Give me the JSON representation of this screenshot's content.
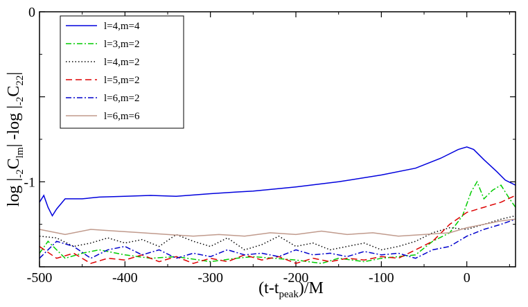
{
  "chart_data": {
    "type": "line",
    "title": "",
    "xlabel": {
      "main": "(t-t",
      "sub": "peak",
      "tail": ")/M"
    },
    "ylabel": {
      "p1": "log |",
      "s1": "-2",
      "p2": "C",
      "s2": "lm",
      "p3": "| -log |",
      "s3": "-2",
      "p4": "C",
      "s4": "22",
      "p5": "|"
    },
    "xlim": [
      -500,
      57
    ],
    "ylim": [
      -1.5,
      0
    ],
    "x_ticks": [
      -500,
      -400,
      -300,
      -200,
      -100,
      0
    ],
    "x_tick_labels": [
      "-500",
      "-400",
      "-300",
      "-200",
      "-100",
      "0"
    ],
    "y_ticks": [
      0,
      -0.5,
      -1,
      -1.5
    ],
    "y_tick_labels": [
      "0",
      "",
      "-1",
      ""
    ],
    "legend_position": "top-left",
    "series": [
      {
        "name": "l=4,m=4",
        "color": "#0000dd",
        "dash": "solid",
        "points": [
          [
            -500,
            -1.12
          ],
          [
            -495,
            -1.08
          ],
          [
            -490,
            -1.15
          ],
          [
            -485,
            -1.2
          ],
          [
            -480,
            -1.16
          ],
          [
            -470,
            -1.1
          ],
          [
            -450,
            -1.1
          ],
          [
            -430,
            -1.09
          ],
          [
            -400,
            -1.085
          ],
          [
            -370,
            -1.08
          ],
          [
            -340,
            -1.085
          ],
          [
            -300,
            -1.07
          ],
          [
            -270,
            -1.06
          ],
          [
            -250,
            -1.055
          ],
          [
            -200,
            -1.03
          ],
          [
            -150,
            -1.0
          ],
          [
            -100,
            -0.96
          ],
          [
            -60,
            -0.92
          ],
          [
            -30,
            -0.86
          ],
          [
            -10,
            -0.81
          ],
          [
            0,
            -0.795
          ],
          [
            8,
            -0.81
          ],
          [
            20,
            -0.87
          ],
          [
            35,
            -0.94
          ],
          [
            45,
            -0.99
          ],
          [
            57,
            -1.02
          ]
        ]
      },
      {
        "name": "l=3,m=2",
        "color": "#00cc00",
        "dash": "dashdot",
        "points": [
          [
            -500,
            -1.42
          ],
          [
            -490,
            -1.35
          ],
          [
            -470,
            -1.45
          ],
          [
            -450,
            -1.42
          ],
          [
            -430,
            -1.4
          ],
          [
            -400,
            -1.43
          ],
          [
            -370,
            -1.45
          ],
          [
            -340,
            -1.44
          ],
          [
            -300,
            -1.47
          ],
          [
            -270,
            -1.45
          ],
          [
            -250,
            -1.44
          ],
          [
            -200,
            -1.46
          ],
          [
            -170,
            -1.48
          ],
          [
            -150,
            -1.45
          ],
          [
            -120,
            -1.47
          ],
          [
            -100,
            -1.45
          ],
          [
            -80,
            -1.44
          ],
          [
            -60,
            -1.43
          ],
          [
            -40,
            -1.35
          ],
          [
            -20,
            -1.3
          ],
          [
            -5,
            -1.2
          ],
          [
            5,
            -1.06
          ],
          [
            12,
            -1.0
          ],
          [
            20,
            -1.1
          ],
          [
            30,
            -1.05
          ],
          [
            40,
            -1.02
          ],
          [
            50,
            -1.1
          ],
          [
            57,
            -1.15
          ]
        ]
      },
      {
        "name": "l=4,m=2",
        "color": "#000000",
        "dash": "dotted",
        "points": [
          [
            -500,
            -1.32
          ],
          [
            -480,
            -1.33
          ],
          [
            -460,
            -1.38
          ],
          [
            -440,
            -1.36
          ],
          [
            -420,
            -1.33
          ],
          [
            -400,
            -1.36
          ],
          [
            -380,
            -1.34
          ],
          [
            -360,
            -1.38
          ],
          [
            -340,
            -1.31
          ],
          [
            -320,
            -1.35
          ],
          [
            -300,
            -1.38
          ],
          [
            -280,
            -1.33
          ],
          [
            -260,
            -1.4
          ],
          [
            -240,
            -1.37
          ],
          [
            -220,
            -1.32
          ],
          [
            -200,
            -1.38
          ],
          [
            -180,
            -1.36
          ],
          [
            -160,
            -1.4
          ],
          [
            -140,
            -1.38
          ],
          [
            -120,
            -1.36
          ],
          [
            -100,
            -1.4
          ],
          [
            -80,
            -1.38
          ],
          [
            -60,
            -1.35
          ],
          [
            -40,
            -1.3
          ],
          [
            -20,
            -1.27
          ],
          [
            0,
            -1.28
          ],
          [
            20,
            -1.25
          ],
          [
            40,
            -1.22
          ],
          [
            57,
            -1.2
          ]
        ]
      },
      {
        "name": "l=5,m=2",
        "color": "#dd0000",
        "dash": "dashed",
        "points": [
          [
            -500,
            -1.38
          ],
          [
            -480,
            -1.45
          ],
          [
            -460,
            -1.42
          ],
          [
            -440,
            -1.48
          ],
          [
            -420,
            -1.45
          ],
          [
            -400,
            -1.46
          ],
          [
            -380,
            -1.43
          ],
          [
            -360,
            -1.47
          ],
          [
            -340,
            -1.44
          ],
          [
            -320,
            -1.48
          ],
          [
            -300,
            -1.45
          ],
          [
            -280,
            -1.47
          ],
          [
            -260,
            -1.43
          ],
          [
            -240,
            -1.46
          ],
          [
            -220,
            -1.44
          ],
          [
            -200,
            -1.48
          ],
          [
            -180,
            -1.45
          ],
          [
            -160,
            -1.47
          ],
          [
            -140,
            -1.45
          ],
          [
            -120,
            -1.46
          ],
          [
            -100,
            -1.44
          ],
          [
            -80,
            -1.45
          ],
          [
            -60,
            -1.4
          ],
          [
            -40,
            -1.35
          ],
          [
            -20,
            -1.25
          ],
          [
            0,
            -1.18
          ],
          [
            20,
            -1.15
          ],
          [
            40,
            -1.12
          ],
          [
            57,
            -1.08
          ]
        ]
      },
      {
        "name": "l=6,m=2",
        "color": "#0000cc",
        "dash": "dashdot",
        "points": [
          [
            -500,
            -1.45
          ],
          [
            -480,
            -1.35
          ],
          [
            -460,
            -1.38
          ],
          [
            -440,
            -1.45
          ],
          [
            -420,
            -1.4
          ],
          [
            -400,
            -1.38
          ],
          [
            -380,
            -1.43
          ],
          [
            -360,
            -1.4
          ],
          [
            -340,
            -1.45
          ],
          [
            -320,
            -1.42
          ],
          [
            -300,
            -1.44
          ],
          [
            -280,
            -1.4
          ],
          [
            -260,
            -1.43
          ],
          [
            -240,
            -1.42
          ],
          [
            -220,
            -1.44
          ],
          [
            -200,
            -1.4
          ],
          [
            -180,
            -1.43
          ],
          [
            -160,
            -1.42
          ],
          [
            -140,
            -1.44
          ],
          [
            -120,
            -1.41
          ],
          [
            -100,
            -1.43
          ],
          [
            -80,
            -1.42
          ],
          [
            -60,
            -1.45
          ],
          [
            -40,
            -1.4
          ],
          [
            -20,
            -1.38
          ],
          [
            0,
            -1.32
          ],
          [
            20,
            -1.28
          ],
          [
            40,
            -1.25
          ],
          [
            57,
            -1.22
          ]
        ]
      },
      {
        "name": "l=6,m=6",
        "color": "#c09a8c",
        "dash": "solid",
        "points": [
          [
            -500,
            -1.28
          ],
          [
            -480,
            -1.3
          ],
          [
            -470,
            -1.31
          ],
          [
            -440,
            -1.28
          ],
          [
            -410,
            -1.29
          ],
          [
            -380,
            -1.3
          ],
          [
            -350,
            -1.31
          ],
          [
            -320,
            -1.32
          ],
          [
            -290,
            -1.31
          ],
          [
            -260,
            -1.32
          ],
          [
            -230,
            -1.3
          ],
          [
            -200,
            -1.31
          ],
          [
            -170,
            -1.29
          ],
          [
            -140,
            -1.31
          ],
          [
            -110,
            -1.3
          ],
          [
            -80,
            -1.32
          ],
          [
            -50,
            -1.31
          ],
          [
            -20,
            -1.3
          ],
          [
            0,
            -1.27
          ],
          [
            20,
            -1.25
          ],
          [
            40,
            -1.23
          ],
          [
            57,
            -1.22
          ]
        ]
      }
    ]
  }
}
